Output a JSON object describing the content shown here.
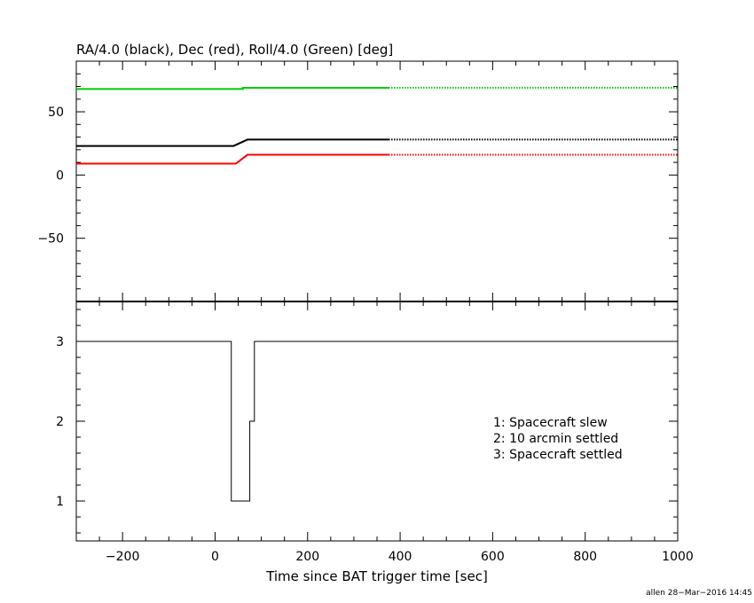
{
  "chart_data": [
    {
      "type": "line",
      "title": "RA/4.0 (black), Dec (red), Roll/4.0 (Green) [deg]",
      "xlim": [
        -300,
        1000
      ],
      "ylim": [
        -100,
        90
      ],
      "yticks": [
        -50,
        0,
        50
      ],
      "ytick_labels": [
        "−50",
        "0",
        "50"
      ],
      "series": [
        {
          "color": "#000000",
          "solid_until": 375,
          "x": [
            -300,
            40,
            70,
            375,
            1000
          ],
          "y": [
            23,
            23,
            28,
            28,
            28
          ]
        },
        {
          "color": "#ff0000",
          "solid_until": 375,
          "x": [
            -300,
            45,
            70,
            375,
            1000
          ],
          "y": [
            9,
            9,
            16,
            16,
            16
          ]
        },
        {
          "color": "#00cc00",
          "solid_until": 375,
          "x": [
            -300,
            60,
            60,
            375,
            1000
          ],
          "y": [
            68,
            68,
            69,
            69,
            69
          ]
        }
      ]
    },
    {
      "type": "line",
      "xlabel": "Time since BAT trigger time [sec]",
      "xlim": [
        -300,
        1000
      ],
      "ylim": [
        0.5,
        3.5
      ],
      "xticks": [
        -200,
        0,
        200,
        400,
        600,
        800,
        1000
      ],
      "xtick_labels": [
        "−200",
        "0",
        "200",
        "400",
        "600",
        "800",
        "1000"
      ],
      "yticks": [
        1,
        2,
        3
      ],
      "ytick_labels": [
        "1",
        "2",
        "3"
      ],
      "series": [
        {
          "color": "#000000",
          "step": true,
          "x": [
            -300,
            35,
            35,
            75,
            75,
            85,
            85,
            1000
          ],
          "y": [
            3,
            3,
            1,
            1,
            2,
            2,
            3,
            3
          ]
        }
      ],
      "annotations": [
        "1: Spacecraft slew",
        "2: 10 arcmin settled",
        "3: Spacecraft settled"
      ]
    }
  ],
  "footer": "allen 28−Mar−2016 14:45"
}
